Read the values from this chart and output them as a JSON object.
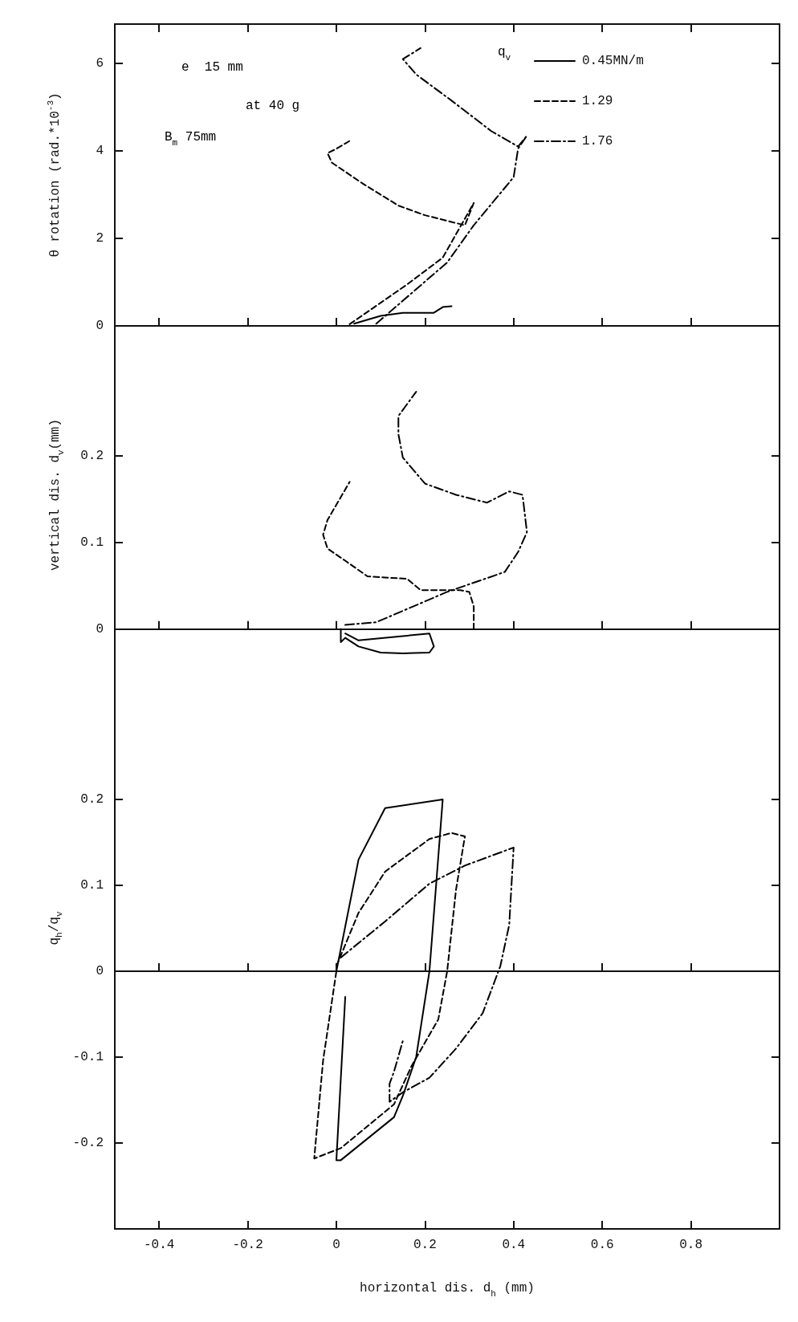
{
  "chart_data": [
    {
      "type": "line",
      "ylabel": "θ rotation (rad.*10$^{-3}$)",
      "xlim": [
        -0.5,
        1.0
      ],
      "xticks": [
        -0.4,
        -0.2,
        0,
        0.2,
        0.4,
        0.6,
        0.8
      ],
      "ylim": [
        0,
        6.9
      ],
      "yticks": [
        0,
        2,
        4,
        6
      ],
      "tick_labels": "y",
      "legend": "top right",
      "legend_title": "q$_{v}$",
      "annotations": [
        "e  15 mm",
        "at 40 g",
        "B$_{m}$ 75mm"
      ],
      "series": [
        {
          "name": "0.45MN/m",
          "color": "#000000",
          "line_style": "solid",
          "x": [
            0.04,
            0.1,
            0.15,
            0.22,
            0.24,
            0.26
          ],
          "values": [
            0.05,
            0.23,
            0.3,
            0.3,
            0.43,
            0.45
          ]
        },
        {
          "name": "1.29",
          "color": "#000000",
          "line_style": "dashed",
          "x": [
            0.03,
            0.16,
            0.24,
            0.31,
            0.29,
            0.2,
            0.14,
            0.06,
            -0.01,
            -0.02,
            0.0,
            0.03
          ],
          "values": [
            0.04,
            0.95,
            1.56,
            2.81,
            2.3,
            2.53,
            2.75,
            3.25,
            3.73,
            3.95,
            4.05,
            4.23
          ]
        },
        {
          "name": "1.76",
          "color": "#000000",
          "line_style": "dashdot",
          "x": [
            0.09,
            0.25,
            0.31,
            0.4,
            0.41,
            0.43,
            0.41,
            0.35,
            0.26,
            0.18,
            0.15,
            0.19
          ],
          "values": [
            0.05,
            1.45,
            2.3,
            3.4,
            4.05,
            4.35,
            4.1,
            4.45,
            5.15,
            5.75,
            6.1,
            6.35
          ]
        }
      ]
    },
    {
      "type": "line",
      "ylabel": "vertical dis. d$_{v}$(mm)",
      "xlim": [
        -0.5,
        1.0
      ],
      "xticks": [
        -0.4,
        -0.2,
        0,
        0.2,
        0.4,
        0.6,
        0.8
      ],
      "ylim": [
        -0.04,
        0.35
      ],
      "yticks": [
        0,
        0.1,
        0.2
      ],
      "tick_labels": "y",
      "series": [
        {
          "color": "#000000",
          "line_style": "solid",
          "x": [
            0.01,
            0.01,
            0.02,
            0.05,
            0.1,
            0.15,
            0.21,
            0.22,
            0.21,
            0.15,
            0.05,
            0.02
          ],
          "values": [
            0.0,
            -0.015,
            -0.01,
            -0.02,
            -0.027,
            -0.028,
            -0.027,
            -0.02,
            -0.005,
            -0.008,
            -0.013,
            -0.005
          ]
        },
        {
          "color": "#000000",
          "line_style": "dashed",
          "x": [
            0.31,
            0.31,
            0.3,
            0.28,
            0.19,
            0.16,
            0.07,
            0.02,
            -0.02,
            -0.03,
            -0.02,
            0.03
          ],
          "values": [
            0.0,
            0.026,
            0.043,
            0.045,
            0.045,
            0.058,
            0.061,
            0.079,
            0.093,
            0.109,
            0.126,
            0.17
          ]
        },
        {
          "color": "#000000",
          "line_style": "dashdot",
          "x": [
            0.02,
            0.09,
            0.25,
            0.38,
            0.41,
            0.43,
            0.42,
            0.39,
            0.34,
            0.27,
            0.2,
            0.15,
            0.14,
            0.14,
            0.18
          ],
          "values": [
            0.005,
            0.008,
            0.043,
            0.066,
            0.089,
            0.112,
            0.155,
            0.159,
            0.146,
            0.155,
            0.168,
            0.198,
            0.225,
            0.246,
            0.274
          ]
        }
      ]
    },
    {
      "type": "line",
      "xlabel": "horizontal dis. d$_{h}$ (mm)",
      "ylabel": "q$_{h}$/q$_{v}$",
      "xlim": [
        -0.5,
        1.0
      ],
      "xticks": [
        -0.4,
        -0.2,
        0,
        0.2,
        0.4,
        0.6,
        0.8
      ],
      "ylim": [
        -0.3,
        0.4
      ],
      "yticks": [
        -0.2,
        -0.1,
        0,
        0.1,
        0.2
      ],
      "series": [
        {
          "color": "#000000",
          "line_style": "solid",
          "x": [
            0.0,
            0.05,
            0.11,
            0.24,
            0.21,
            0.18,
            0.15,
            0.13,
            0.01,
            0.0,
            0.02
          ],
          "values": [
            0.0,
            0.13,
            0.19,
            0.2,
            0.0,
            -0.1,
            -0.145,
            -0.17,
            -0.22,
            -0.22,
            -0.03
          ]
        },
        {
          "color": "#000000",
          "line_style": "dashed",
          "x": [
            0.0,
            0.05,
            0.11,
            0.21,
            0.26,
            0.29,
            0.27,
            0.25,
            0.23,
            0.17,
            0.13,
            0.01,
            -0.05,
            -0.03,
            0.0
          ],
          "values": [
            0.006,
            0.068,
            0.116,
            0.154,
            0.161,
            0.157,
            0.095,
            0.0,
            -0.056,
            -0.11,
            -0.155,
            -0.206,
            -0.218,
            -0.104,
            0.0
          ]
        },
        {
          "color": "#000000",
          "line_style": "dashdot",
          "x": [
            0.01,
            0.11,
            0.21,
            0.29,
            0.4,
            0.39,
            0.37,
            0.33,
            0.27,
            0.21,
            0.15,
            0.12,
            0.12,
            0.13,
            0.15
          ],
          "values": [
            0.016,
            0.058,
            0.102,
            0.123,
            0.144,
            0.054,
            0.006,
            -0.049,
            -0.09,
            -0.124,
            -0.141,
            -0.152,
            -0.131,
            -0.117,
            -0.081
          ]
        }
      ]
    }
  ]
}
